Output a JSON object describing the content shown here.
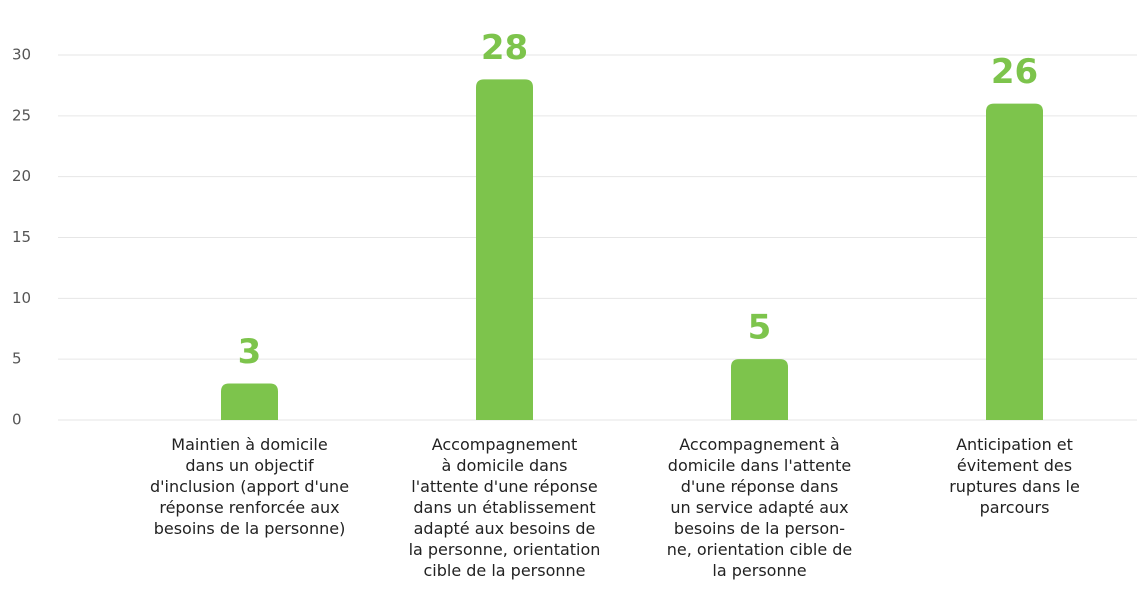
{
  "chart_data": {
    "type": "bar",
    "categories": [
      [
        "Maintien à domicile",
        "dans un objectif",
        "d'inclusion (apport d'une",
        "réponse renforcée aux",
        "besoins de la personne)"
      ],
      [
        "Accompagnement",
        "à domicile dans",
        "l'attente d'une réponse",
        "dans un établissement",
        "adapté aux besoins de",
        "la personne, orientation",
        "cible de la personne"
      ],
      [
        "Accompagnement à",
        "domicile dans l'attente",
        "d'une réponse dans",
        "un service adapté aux",
        "besoins de la person-",
        "ne, orientation cible de",
        "la personne"
      ],
      [
        "Anticipation et",
        "évitement des",
        "ruptures dans le",
        "parcours"
      ]
    ],
    "values": [
      3,
      28,
      5,
      26
    ],
    "color": "#7dc44c",
    "ylim": [
      0,
      30
    ],
    "yticks": [
      0,
      5,
      10,
      15,
      20,
      25,
      30
    ],
    "grid": true
  }
}
